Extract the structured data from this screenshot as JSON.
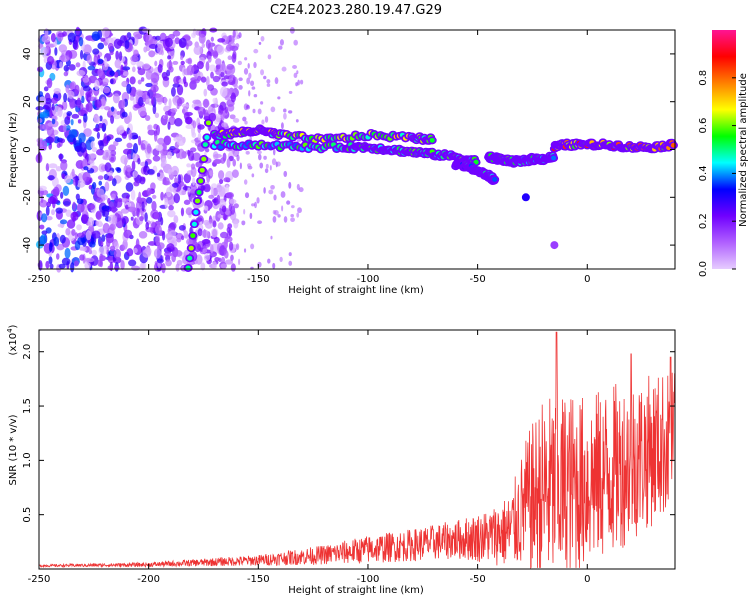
{
  "title": "C2E4.2023.280.19.47.G29",
  "chart_data": [
    {
      "type": "heatmap",
      "xlabel": "Height of straight line (km)",
      "ylabel": "Frequency (Hz)",
      "xlim": [
        -250,
        40
      ],
      "ylim": [
        -50,
        50
      ],
      "xticks": [
        -250,
        -200,
        -150,
        -100,
        -50,
        0
      ],
      "yticks": [
        -40,
        -20,
        0,
        20,
        40
      ],
      "colorbar": {
        "label": "Normalized spectral amplitude",
        "range": [
          0,
          1
        ],
        "ticks": [
          "0.0",
          "0.2",
          "0.4",
          "0.6",
          "0.8"
        ],
        "tick_values": [
          0,
          0.2,
          0.4,
          0.6,
          0.8
        ],
        "colors": [
          "#e6ccff",
          "#b060ff",
          "#7000ff",
          "#0000ff",
          "#00ffff",
          "#00ff00",
          "#ffff00",
          "#ff8000",
          "#ff0000",
          "#ff1493"
        ]
      },
      "noise_region": {
        "x": [
          -250,
          -160
        ],
        "y": [
          -50,
          50
        ],
        "level": 0.35
      },
      "features": [
        {
          "shape": "line",
          "x": [
            -182,
            -172
          ],
          "y": [
            -50,
            15
          ],
          "level": 0.55
        },
        {
          "shape": "line",
          "x": [
            -170,
            -160,
            -150,
            -140,
            -120,
            -100,
            -80,
            -70
          ],
          "y": [
            6,
            7,
            8,
            6,
            4,
            6,
            5,
            4
          ],
          "level": 0.6
        },
        {
          "shape": "line",
          "x": [
            -170,
            -150,
            -130,
            -110,
            -100,
            -90,
            -80,
            -70,
            -60,
            -50
          ],
          "y": [
            2,
            2,
            1,
            1,
            1,
            0,
            -1,
            -2,
            -3,
            -5
          ],
          "level": 0.5
        },
        {
          "shape": "line",
          "x": [
            -60,
            -55,
            -50,
            -45,
            -42
          ],
          "y": [
            -6,
            -7,
            -9,
            -11,
            -13
          ],
          "level": 0.45
        },
        {
          "shape": "line",
          "x": [
            -45,
            -40,
            -35,
            -30,
            -25,
            -20,
            -15
          ],
          "y": [
            -3,
            -4,
            -5,
            -5,
            -4,
            -4,
            -3
          ],
          "level": 0.5
        },
        {
          "shape": "line",
          "x": [
            -15,
            -10,
            0,
            10,
            20,
            30,
            40
          ],
          "y": [
            1,
            2,
            2,
            2,
            1,
            1,
            2
          ],
          "level": 0.75
        }
      ],
      "blobs": [
        {
          "x": -28,
          "y": -20,
          "level": 0.3
        },
        {
          "x": -15,
          "y": -40,
          "level": 0.15
        }
      ]
    },
    {
      "type": "line",
      "xlabel": "Height of straight line (km)",
      "ylabel": "SNR (10 * v/v)",
      "yscale_label": "(x10",
      "yscale_exponent": "4",
      "yscale_close": ")",
      "xlim": [
        -250,
        40
      ],
      "ylim": [
        0,
        22000
      ],
      "xticks": [
        -250,
        -200,
        -150,
        -100,
        -50,
        0
      ],
      "yticks": [
        5000,
        10000,
        15000,
        20000
      ],
      "ytick_labels": [
        "0.5",
        "1.0",
        "1.5",
        "2.0"
      ],
      "color": "#ee3333",
      "envelope": {
        "x": [
          -250,
          -200,
          -150,
          -120,
          -100,
          -80,
          -60,
          -45,
          -35,
          -28,
          -20,
          -10,
          0,
          10,
          20,
          30,
          40
        ],
        "base": [
          300,
          400,
          800,
          1300,
          1800,
          2200,
          2700,
          3000,
          3500,
          6000,
          7000,
          7500,
          8000,
          9000,
          10000,
          11000,
          12000
        ],
        "amplitude": [
          100,
          200,
          500,
          900,
          1300,
          1500,
          1800,
          2500,
          3500,
          6000,
          9000,
          9000,
          8000,
          8000,
          7500,
          7000,
          6500
        ]
      },
      "peaks": [
        {
          "x": -14,
          "y": 21800
        },
        {
          "x": 20,
          "y": 19800
        },
        {
          "x": 38,
          "y": 19500
        }
      ]
    }
  ]
}
